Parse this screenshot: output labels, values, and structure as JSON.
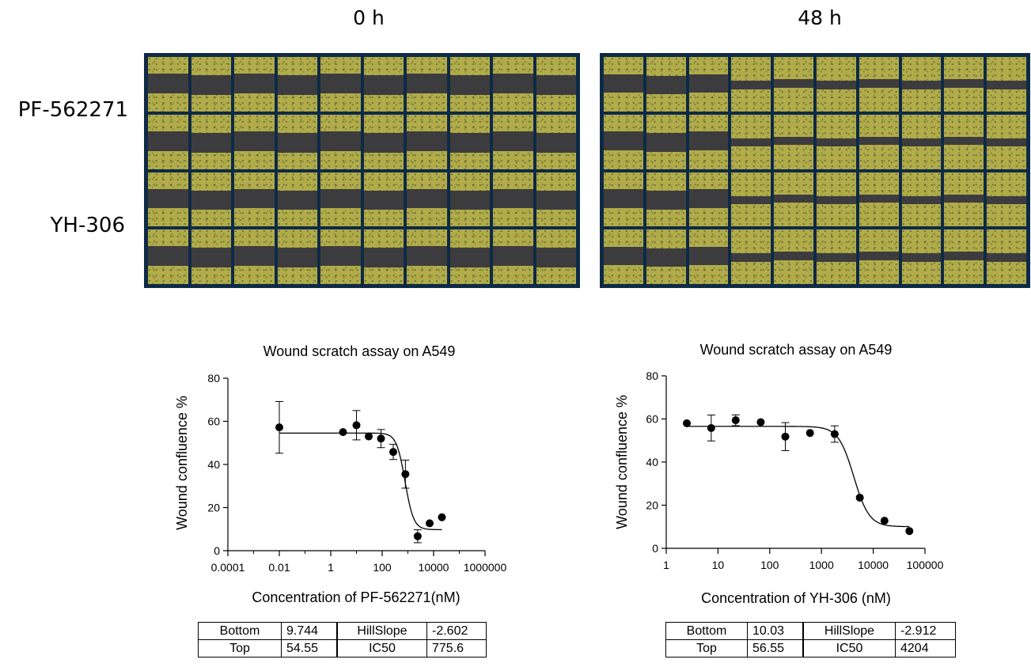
{
  "figure": {
    "time_labels": [
      "0 h",
      "48 h"
    ],
    "row_labels": [
      "PF-562271",
      "YH-306"
    ]
  },
  "chart_data": [
    {
      "type": "scatter",
      "title": "Wound scratch assay on A549",
      "xlabel": "Concentration of PF-562271(nM)",
      "ylabel": "Wound confluence %",
      "xscale": "log",
      "xlim": [
        0.0001,
        1000000
      ],
      "ylim": [
        0,
        80
      ],
      "xticks": [
        0.0001,
        0.01,
        1,
        100,
        10000,
        1000000
      ],
      "xtick_labels": [
        "0.0001",
        "0.01",
        "1",
        "100",
        "10000",
        "1000000"
      ],
      "yticks": [
        0,
        20,
        40,
        60,
        80
      ],
      "ytick_labels": [
        "0",
        "20",
        "40",
        "60",
        "80"
      ],
      "points": [
        {
          "x": 0.01,
          "y": 57.2,
          "err": 12
        },
        {
          "x": 3,
          "y": 55
        },
        {
          "x": 10,
          "y": 58.2,
          "err": 6.8
        },
        {
          "x": 30,
          "y": 53
        },
        {
          "x": 90,
          "y": 52,
          "err": 4.2
        },
        {
          "x": 270,
          "y": 45.8,
          "err": 3.5
        },
        {
          "x": 800,
          "y": 35.5,
          "err": 6.5
        },
        {
          "x": 2400,
          "y": 6.7,
          "err": 3
        },
        {
          "x": 7000,
          "y": 12.7
        },
        {
          "x": 21000,
          "y": 15.5
        }
      ],
      "fit": {
        "model": "4PL",
        "bottom": 9.744,
        "top": 54.55,
        "hillslope": -2.602,
        "ic50": 775.6,
        "x_range": [
          0.01,
          21000
        ]
      },
      "param_table": [
        [
          "Bottom",
          "9.744",
          "HillSlope",
          "-2.602"
        ],
        [
          "Top",
          "54.55",
          "IC50",
          "775.6"
        ]
      ]
    },
    {
      "type": "scatter",
      "title": "Wound scratch assay on A549",
      "xlabel": "Concentration of YH-306 (nM)",
      "ylabel": "Wound confluence %",
      "xscale": "log",
      "xlim": [
        1,
        100000
      ],
      "ylim": [
        0,
        80
      ],
      "xticks": [
        1,
        10,
        100,
        1000,
        10000,
        100000
      ],
      "xtick_labels": [
        "1",
        "10",
        "100",
        "1000",
        "10000",
        "100000"
      ],
      "yticks": [
        0,
        20,
        40,
        60,
        80
      ],
      "ytick_labels": [
        "0",
        "20",
        "40",
        "60",
        "80"
      ],
      "points": [
        {
          "x": 2.5,
          "y": 58
        },
        {
          "x": 7.4,
          "y": 55.8,
          "err": 6
        },
        {
          "x": 22,
          "y": 59.4,
          "err": 2.5
        },
        {
          "x": 67,
          "y": 58.5
        },
        {
          "x": 200,
          "y": 51.8,
          "err": 6.5
        },
        {
          "x": 600,
          "y": 53.5
        },
        {
          "x": 1800,
          "y": 53,
          "err": 3.8
        },
        {
          "x": 5500,
          "y": 23.5
        },
        {
          "x": 16500,
          "y": 12.8
        },
        {
          "x": 50000,
          "y": 8
        }
      ],
      "fit": {
        "model": "4PL",
        "bottom": 10.03,
        "top": 56.55,
        "hillslope": -2.912,
        "ic50": 4204,
        "x_range": [
          2.5,
          50000
        ]
      },
      "param_table": [
        [
          "Bottom",
          "10.03",
          "HillSlope",
          "-2.912"
        ],
        [
          "Top",
          "56.55",
          "IC50",
          "4204"
        ]
      ]
    }
  ]
}
